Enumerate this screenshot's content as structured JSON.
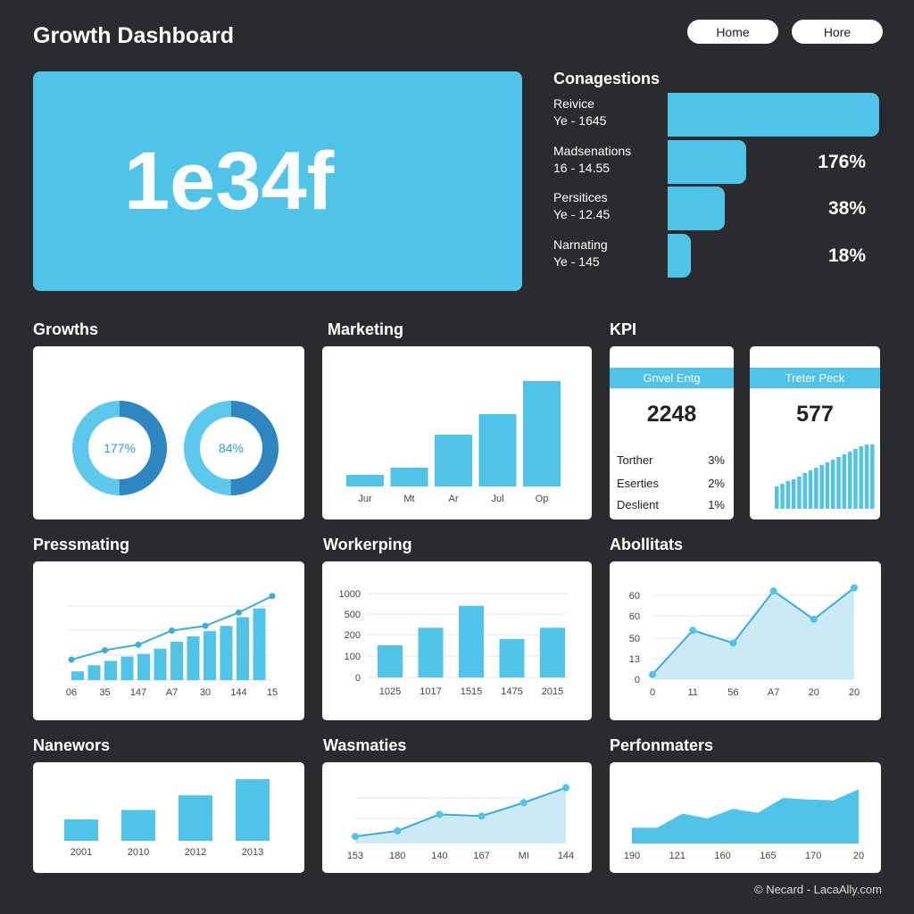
{
  "header": {
    "title": "Growth Dashboard",
    "buttons": [
      "Home",
      "Hore"
    ]
  },
  "hero": {
    "value": "1e34f"
  },
  "congestions": {
    "title": "Conagestions",
    "items": [
      {
        "label": "Reivice",
        "sub": "Ye - 1645",
        "pct": "",
        "fill": 1.0
      },
      {
        "label": "Madsenations",
        "sub": "16 - 14.55",
        "pct": "176%",
        "fill": 0.37
      },
      {
        "label": "Persitices",
        "sub": "Ye - 12.45",
        "pct": "38%",
        "fill": 0.27
      },
      {
        "label": "Narnating",
        "sub": "Ye - 145",
        "pct": "18%",
        "fill": 0.11
      }
    ]
  },
  "sections": {
    "growths": "Growths",
    "marketing": "Marketing",
    "kpi": "KPI",
    "pressmating": "Pressmating",
    "workerping": "Workerping",
    "abollitats": "Abollitats",
    "nanewors": "Nanewors",
    "wasmaties": "Wasmaties",
    "perfonmaters": "Perfonmaters"
  },
  "donuts": [
    {
      "label": "177%",
      "value": 0.5
    },
    {
      "label": "84%",
      "value": 0.5
    }
  ],
  "kpi": [
    {
      "title": "Gnvel Entg",
      "value": "2248",
      "rows": [
        {
          "label": "Torther",
          "value": "3%"
        },
        {
          "label": "Eserties",
          "value": "2%"
        },
        {
          "label": "Deslient",
          "value": "1%"
        }
      ]
    },
    {
      "title": "Treter Peck",
      "value": "577",
      "spark": [
        25,
        28,
        31,
        33,
        36,
        40,
        43,
        46,
        49,
        52,
        55,
        58,
        61,
        64,
        67,
        70,
        72,
        72
      ]
    }
  ],
  "colors": {
    "accent": "#4fc3e8",
    "accent_dark": "#2e86c1",
    "background": "#2a2b2e"
  },
  "chart_data": [
    {
      "id": "marketing",
      "type": "bar",
      "categories": [
        "Jur",
        "Mt",
        "Ar",
        "Jul",
        "Op"
      ],
      "values": [
        13,
        21,
        58,
        81,
        118
      ],
      "ylim": [
        0,
        125
      ]
    },
    {
      "id": "pressmating",
      "type": "bar+line",
      "x_labels": [
        "06",
        "35",
        "147",
        "A7",
        "30",
        "144",
        "15"
      ],
      "bars": [
        10,
        17,
        22,
        27,
        30,
        36,
        44,
        50,
        56,
        62,
        72,
        82
      ],
      "line": [
        17,
        29,
        36,
        54,
        60,
        77,
        98
      ],
      "ylim": [
        0,
        100
      ],
      "grid": true
    },
    {
      "id": "workerping",
      "type": "bar",
      "categories": [
        "1025",
        "1017",
        "1515",
        "1475",
        "2015"
      ],
      "values": [
        150,
        300,
        700,
        180,
        300
      ],
      "yticks": [
        0,
        100,
        200,
        500,
        1000
      ],
      "grid": true
    },
    {
      "id": "abollitats",
      "type": "area",
      "categories": [
        "0",
        "11",
        "56",
        "A7",
        "20",
        "20"
      ],
      "values": [
        3,
        31,
        23,
        56,
        38,
        58
      ],
      "ytick_labels": [
        "0",
        "13",
        "50",
        "60",
        "60"
      ],
      "ylim": [
        0,
        64
      ],
      "grid": true
    },
    {
      "id": "nanewors",
      "type": "bar",
      "categories": [
        "2001",
        "2010",
        "2012",
        "2013"
      ],
      "values": [
        25,
        36,
        53,
        72
      ],
      "ylim": [
        0,
        75
      ]
    },
    {
      "id": "wasmaties",
      "type": "area",
      "categories": [
        "153",
        "180",
        "140",
        "167",
        "MI",
        "144"
      ],
      "values": [
        9,
        16,
        37,
        35,
        52,
        71
      ],
      "ylim": [
        0,
        75
      ],
      "grid": true
    },
    {
      "id": "perfonmaters",
      "type": "area",
      "x_labels": [
        "190",
        "121",
        "160",
        "165",
        "170",
        "20"
      ],
      "values": [
        20,
        20,
        38,
        32,
        44,
        39,
        58,
        56,
        55,
        69
      ],
      "ylim": [
        0,
        75
      ]
    }
  ],
  "footer": "© Necard - LacaAlly.com"
}
